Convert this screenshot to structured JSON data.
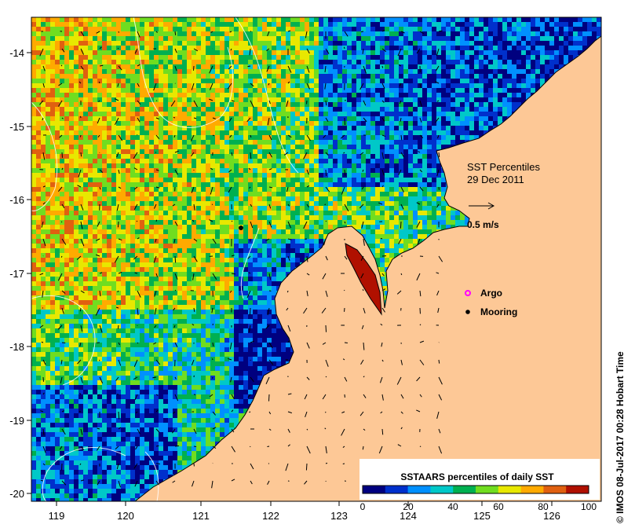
{
  "map": {
    "title_line1": "SST Percentiles",
    "title_line2": "29 Dec 2011",
    "vector_scale_label": "0.5 m/s",
    "x_ticks": [
      "119",
      "120",
      "121",
      "122",
      "123",
      "124",
      "125",
      "126"
    ],
    "y_ticks": [
      "-14",
      "-15",
      "-16",
      "-17",
      "-18",
      "-19",
      "-20"
    ],
    "legend": {
      "argo_label": "Argo",
      "mooring_label": "Mooring",
      "argo_color": "#ff00ff",
      "mooring_color": "#000000"
    },
    "colorbar": {
      "title": "SSTAARS percentiles of daily SST",
      "tick_labels": [
        "0",
        "20",
        "40",
        "60",
        "80",
        "100"
      ],
      "colors": [
        "#00007f",
        "#0030cc",
        "#0090ff",
        "#00c8c8",
        "#00b050",
        "#70dd20",
        "#e8e800",
        "#ffaa00",
        "#e06010",
        "#b01000"
      ]
    },
    "land_color": "#fdc896",
    "credit": "© IMOS 08-Jul-2017 00:28 Hobart Time"
  }
}
